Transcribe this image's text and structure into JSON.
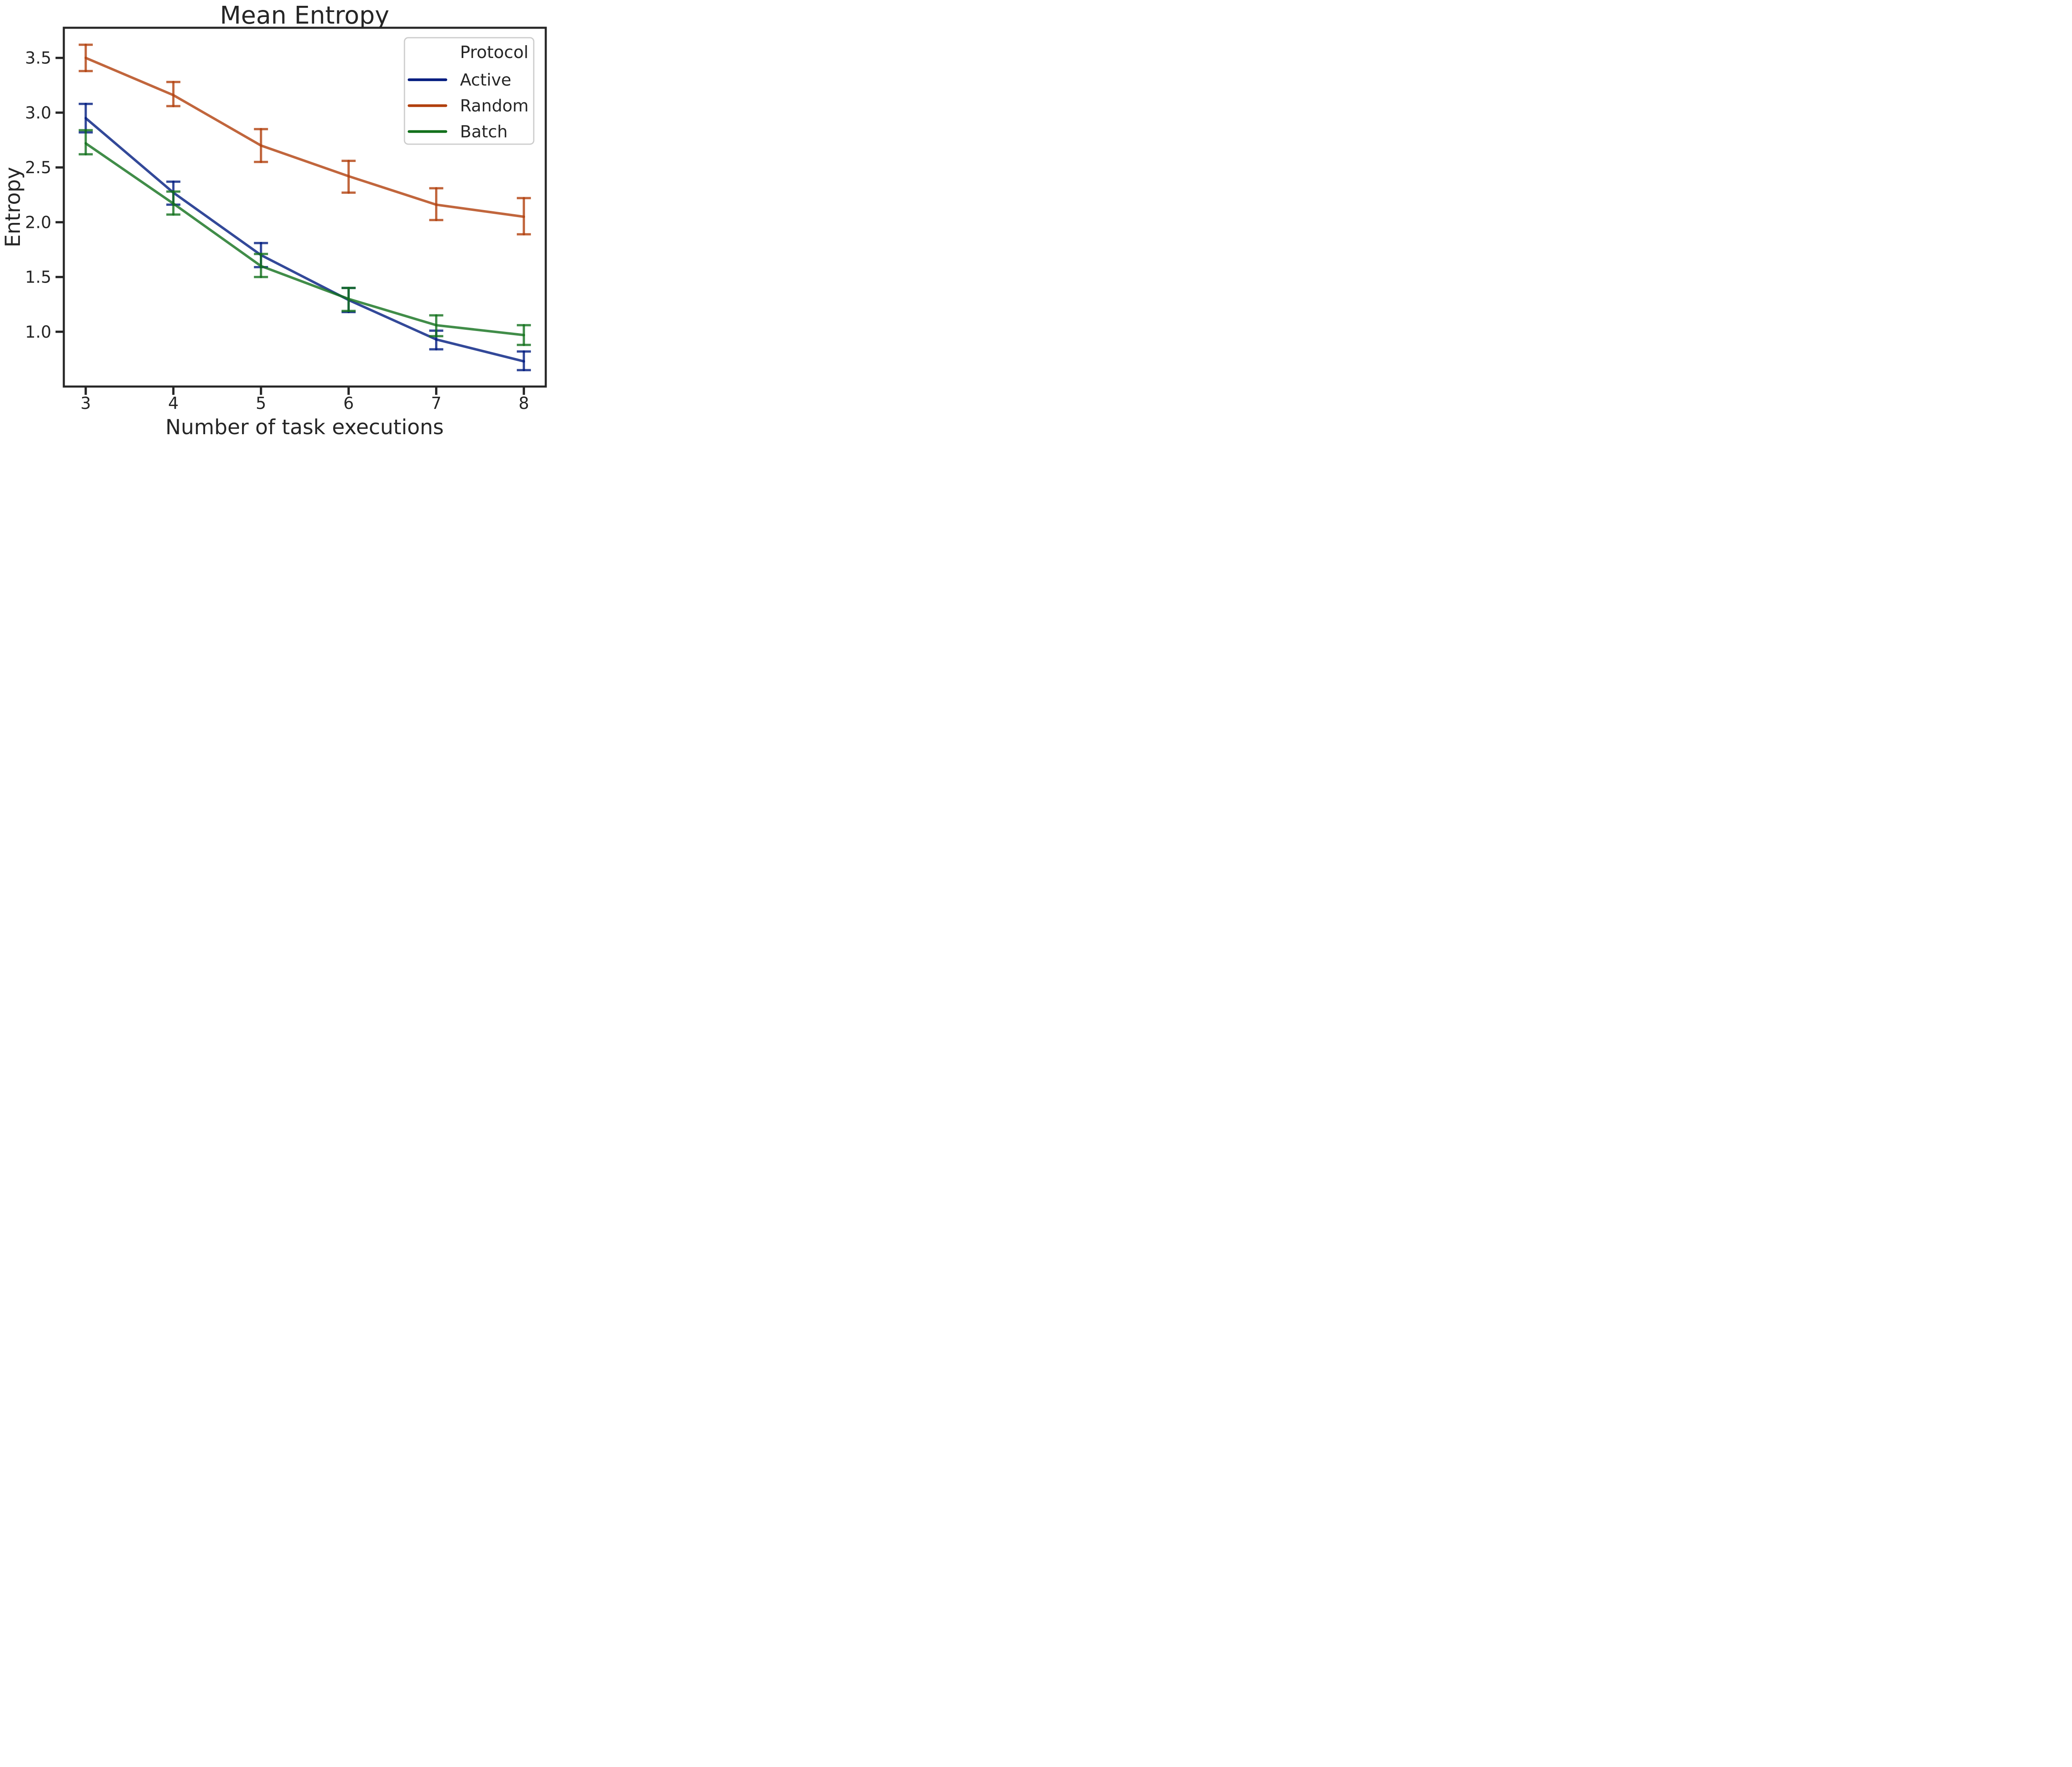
{
  "figure": {
    "title": "Mean Entropy",
    "xlabel": "Number of task executions",
    "ylabel": "Entropy",
    "text_color": "#262626",
    "spine_color": "#262626",
    "background": "#ffffff"
  },
  "legend": {
    "title": "Protocol",
    "items": [
      {
        "label": "Active",
        "color": "#001C7F"
      },
      {
        "label": "Random",
        "color": "#B1400D"
      },
      {
        "label": "Batch",
        "color": "#12711C"
      }
    ]
  },
  "axes": {
    "x_tick_labels": [
      "3",
      "4",
      "5",
      "6",
      "7",
      "8"
    ],
    "x_tick_values": [
      3,
      4,
      5,
      6,
      7,
      8
    ],
    "y_tick_labels": [
      "3.5",
      "3.0",
      "2.5",
      "2.0",
      "1.5",
      "1.0"
    ],
    "y_tick_values": [
      3.5,
      3.0,
      2.5,
      2.0,
      1.5,
      1.0
    ]
  },
  "chart_data": {
    "type": "line",
    "title": "Mean Entropy",
    "xlabel": "Number of task executions",
    "ylabel": "Entropy",
    "x": [
      3,
      4,
      5,
      6,
      7,
      8
    ],
    "xlim": [
      2.75,
      8.25
    ],
    "ylim": [
      0.5,
      3.775
    ],
    "grid": false,
    "error_bars": true,
    "legend_position": "upper right",
    "legend_title": "Protocol",
    "series": [
      {
        "name": "Active",
        "color": "#001C7F",
        "values": [
          2.95,
          2.27,
          1.7,
          1.29,
          0.93,
          0.73
        ],
        "err_low": [
          2.82,
          2.16,
          1.59,
          1.18,
          0.84,
          0.65
        ],
        "err_high": [
          3.08,
          2.37,
          1.81,
          1.4,
          1.01,
          0.82
        ]
      },
      {
        "name": "Random",
        "color": "#B1400D",
        "values": [
          3.5,
          3.16,
          2.7,
          2.42,
          2.16,
          2.05
        ],
        "err_low": [
          3.38,
          3.06,
          2.55,
          2.27,
          2.02,
          1.89
        ],
        "err_high": [
          3.62,
          3.28,
          2.85,
          2.56,
          2.31,
          2.22
        ]
      },
      {
        "name": "Batch",
        "color": "#12711C",
        "values": [
          2.72,
          2.17,
          1.6,
          1.3,
          1.06,
          0.97
        ],
        "err_low": [
          2.62,
          2.07,
          1.5,
          1.19,
          0.96,
          0.88
        ],
        "err_high": [
          2.84,
          2.28,
          1.71,
          1.4,
          1.15,
          1.06
        ]
      }
    ]
  }
}
